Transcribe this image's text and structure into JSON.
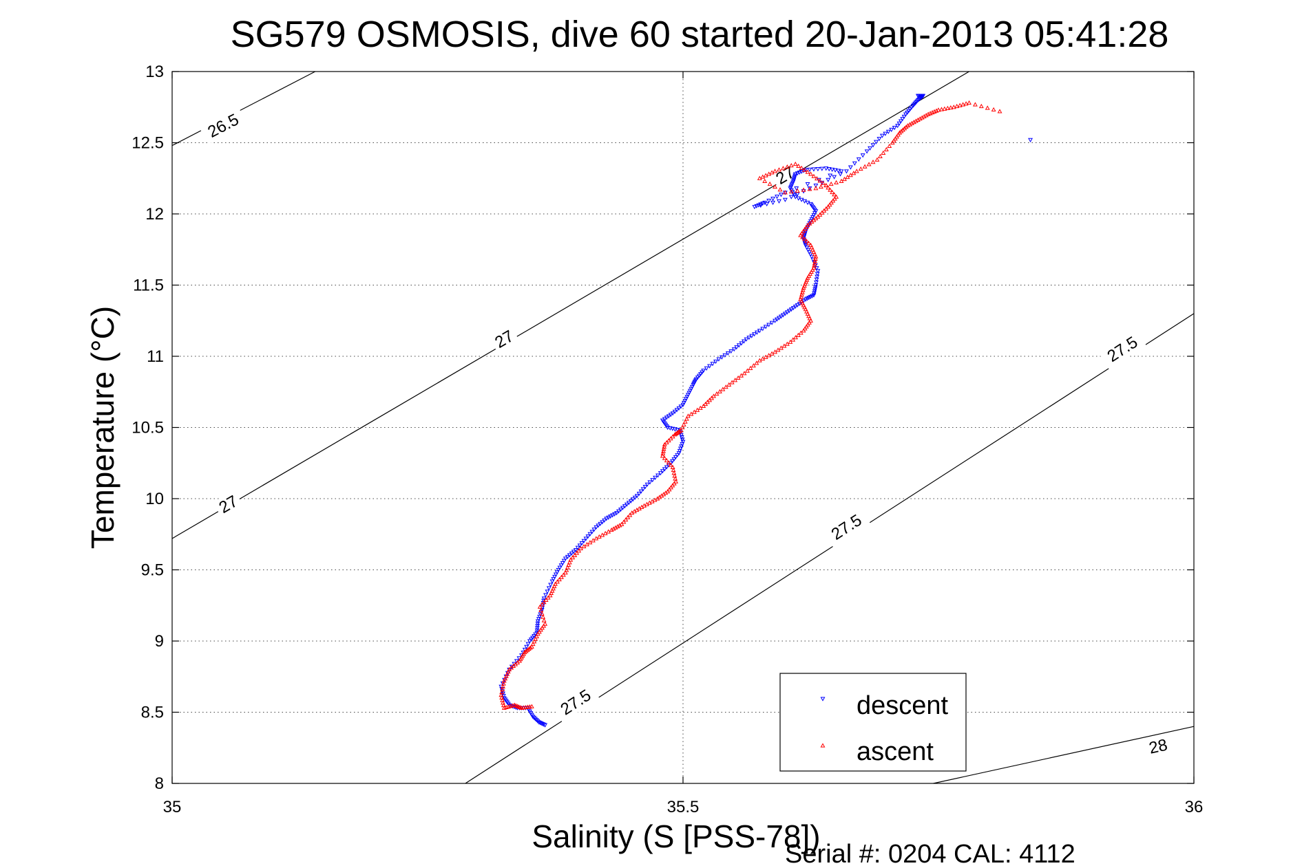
{
  "chart_data": {
    "type": "scatter",
    "title": "SG579 OSMOSIS, dive 60 started 20-Jan-2013 05:41:28",
    "xlabel": "Salinity (S [PSS-78])",
    "ylabel": "Temperature (°C)",
    "footer": "Serial #: 0204  CAL: 4112",
    "xlim": [
      35,
      36
    ],
    "ylim": [
      8,
      13
    ],
    "xticks": [
      35,
      35.5,
      36
    ],
    "xtick_labels": [
      "35",
      "35.5",
      "36"
    ],
    "yticks": [
      8,
      8.5,
      9,
      9.5,
      10,
      10.5,
      11,
      11.5,
      12,
      12.5,
      13
    ],
    "ytick_labels": [
      "8",
      "8.5",
      "9",
      "9.5",
      "10",
      "10.5",
      "11",
      "11.5",
      "12",
      "12.5",
      "13"
    ],
    "grid": true,
    "grid_style": "dotted",
    "legend_position": "bottom-right",
    "colors": {
      "descent": "#0000ff",
      "ascent": "#ff0000",
      "contour": "#000000"
    },
    "contours": [
      {
        "label": "26.5",
        "points": [
          [
            35.0,
            12.48
          ],
          [
            35.14,
            13.0
          ]
        ],
        "label_at": [
          35.05,
          12.62
        ]
      },
      {
        "label": "27",
        "points": [
          [
            35.0,
            9.72
          ],
          [
            35.78,
            13.0
          ]
        ],
        "label_at": [
          [
            35.055,
            9.96
          ],
          [
            35.325,
            11.12
          ],
          [
            35.6,
            12.27
          ]
        ]
      },
      {
        "label": "27.5",
        "points": [
          [
            35.287,
            8.0
          ],
          [
            36.0,
            11.3
          ]
        ],
        "label_at": [
          [
            35.395,
            8.57
          ],
          [
            35.66,
            9.8
          ],
          [
            35.93,
            11.05
          ]
        ]
      },
      {
        "label": "28",
        "points": [
          [
            35.745,
            8.0
          ],
          [
            36.0,
            8.4
          ]
        ],
        "label_at": [
          35.965,
          8.26
        ]
      }
    ],
    "series": [
      {
        "name": "descent",
        "marker": "triangle-down",
        "x": [
          35.365,
          35.359,
          35.353,
          35.348,
          35.338,
          35.33,
          35.325,
          35.322,
          35.33,
          35.342,
          35.35,
          35.357,
          35.358,
          35.362,
          35.364,
          35.372,
          35.378,
          35.385,
          35.395,
          35.405,
          35.415,
          35.425,
          35.435,
          35.445,
          35.455,
          35.465,
          35.478,
          35.488,
          35.496,
          35.5,
          35.497,
          35.485,
          35.48,
          35.49,
          35.5,
          35.505,
          35.51,
          35.513,
          35.52,
          35.535,
          35.55,
          35.562,
          35.575,
          35.59,
          35.6,
          35.61,
          35.62,
          35.628,
          35.63,
          35.632,
          35.626,
          35.62,
          35.618,
          35.62,
          35.625,
          35.63,
          35.625,
          35.61,
          35.605,
          35.608,
          35.61,
          35.62,
          35.64,
          35.655,
          35.6,
          35.58,
          35.57,
          35.6,
          35.63,
          35.66,
          35.68,
          35.695,
          35.71,
          35.718,
          35.725,
          35.73,
          35.735,
          35.73,
          35.84
        ],
        "y": [
          8.41,
          8.43,
          8.47,
          8.53,
          8.53,
          8.55,
          8.6,
          8.68,
          8.8,
          8.9,
          9.0,
          9.06,
          9.14,
          9.22,
          9.3,
          9.42,
          9.5,
          9.58,
          9.64,
          9.72,
          9.8,
          9.86,
          9.9,
          9.96,
          10.02,
          10.1,
          10.18,
          10.25,
          10.32,
          10.4,
          10.48,
          10.5,
          10.55,
          10.6,
          10.66,
          10.73,
          10.8,
          10.84,
          10.9,
          10.98,
          11.05,
          11.12,
          11.18,
          11.25,
          11.3,
          11.35,
          11.4,
          11.43,
          11.5,
          11.6,
          11.7,
          11.78,
          11.83,
          11.88,
          11.95,
          12.02,
          12.07,
          12.12,
          12.18,
          12.23,
          12.28,
          12.31,
          12.32,
          12.3,
          12.15,
          12.08,
          12.05,
          12.1,
          12.2,
          12.3,
          12.44,
          12.55,
          12.62,
          12.7,
          12.76,
          12.8,
          12.83,
          12.83,
          12.52
        ]
      },
      {
        "name": "ascent",
        "marker": "triangle-up",
        "x": [
          35.352,
          35.342,
          35.335,
          35.325,
          35.322,
          35.325,
          35.33,
          35.34,
          35.345,
          35.352,
          35.358,
          35.365,
          35.36,
          35.37,
          35.375,
          35.385,
          35.39,
          35.4,
          35.415,
          35.43,
          35.44,
          35.45,
          35.462,
          35.475,
          35.485,
          35.493,
          35.49,
          35.48,
          35.482,
          35.492,
          35.498,
          35.505,
          35.52,
          35.53,
          35.545,
          35.56,
          35.575,
          35.59,
          35.605,
          35.618,
          35.625,
          35.62,
          35.615,
          35.618,
          35.622,
          35.628,
          35.63,
          35.625,
          35.615,
          35.622,
          35.632,
          35.642,
          35.65,
          35.64,
          35.625,
          35.61,
          35.59,
          35.575,
          35.6,
          35.63,
          35.655,
          35.67,
          35.69,
          35.705,
          35.712,
          35.72,
          35.73,
          35.74,
          35.75,
          35.765,
          35.78,
          35.81
        ],
        "y": [
          8.54,
          8.53,
          8.55,
          8.53,
          8.62,
          8.72,
          8.8,
          8.86,
          8.92,
          8.96,
          9.05,
          9.12,
          9.24,
          9.32,
          9.4,
          9.48,
          9.57,
          9.65,
          9.72,
          9.78,
          9.82,
          9.9,
          9.95,
          10.0,
          10.05,
          10.12,
          10.22,
          10.3,
          10.38,
          10.45,
          10.48,
          10.58,
          10.65,
          10.72,
          10.8,
          10.88,
          10.97,
          11.03,
          11.1,
          11.18,
          11.25,
          11.33,
          11.4,
          11.48,
          11.55,
          11.62,
          11.7,
          11.78,
          11.85,
          11.92,
          11.98,
          12.05,
          12.12,
          12.2,
          12.28,
          12.35,
          12.3,
          12.25,
          12.15,
          12.18,
          12.23,
          12.3,
          12.38,
          12.5,
          12.57,
          12.62,
          12.66,
          12.7,
          12.73,
          12.75,
          12.78,
          12.72
        ]
      }
    ]
  }
}
